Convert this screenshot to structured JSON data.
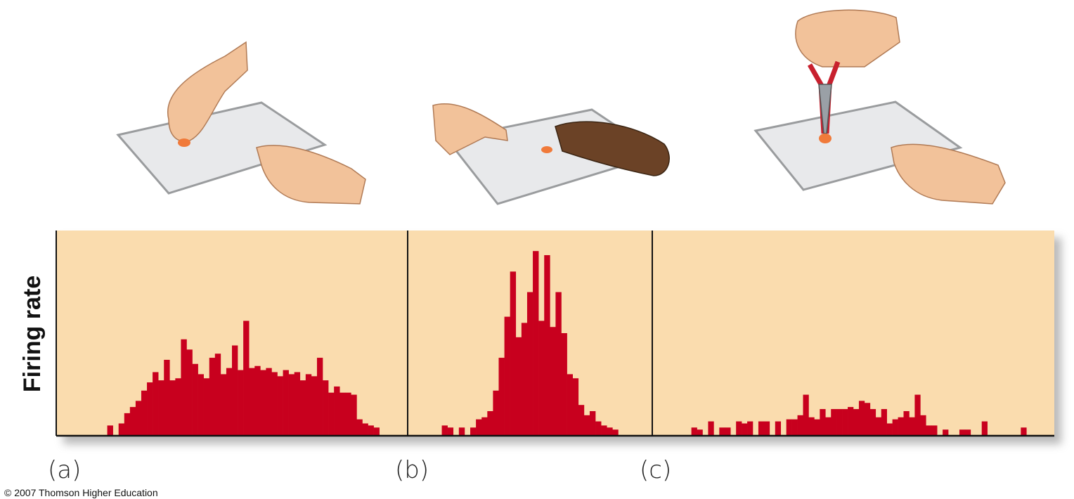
{
  "chart_data": [
    {
      "type": "bar",
      "label": "(a)",
      "y_label": "Firing rate",
      "color": "#c8001e",
      "ylim": [
        0,
        100
      ],
      "values": [
        0,
        0,
        0,
        0,
        0,
        0,
        0,
        0,
        0,
        5,
        0,
        6,
        11,
        14,
        17,
        22,
        26,
        31,
        27,
        37,
        27,
        28,
        47,
        42,
        35,
        30,
        28,
        38,
        40,
        30,
        33,
        44,
        32,
        56,
        33,
        34,
        32,
        33,
        31,
        29,
        32,
        30,
        31,
        27,
        30,
        29,
        38,
        27,
        21,
        24,
        21,
        21,
        20,
        8,
        6,
        5,
        4,
        0,
        0,
        0,
        0,
        0
      ]
    },
    {
      "type": "bar",
      "label": "(b)",
      "color": "#c8001e",
      "ylim": [
        0,
        100
      ],
      "values": [
        0,
        0,
        0,
        0,
        0,
        0,
        5,
        4,
        0,
        4,
        0,
        4,
        8,
        9,
        12,
        22,
        38,
        58,
        80,
        48,
        55,
        70,
        90,
        56,
        88,
        53,
        70,
        50,
        30,
        28,
        15,
        10,
        12,
        7,
        5,
        4,
        3,
        0,
        0,
        0,
        0,
        0,
        0
      ]
    },
    {
      "type": "bar",
      "label": "(c)",
      "color": "#c8001e",
      "ylim": [
        0,
        100
      ],
      "values": [
        0,
        0,
        0,
        0,
        0,
        0,
        0,
        4,
        3,
        0,
        7,
        0,
        4,
        4,
        0,
        7,
        6,
        7,
        0,
        7,
        7,
        0,
        7,
        0,
        8,
        8,
        10,
        20,
        9,
        8,
        13,
        9,
        13,
        13,
        13,
        14,
        13,
        17,
        16,
        13,
        9,
        13,
        6,
        8,
        9,
        12,
        9,
        20,
        10,
        5,
        5,
        0,
        3,
        0,
        0,
        3,
        3,
        0,
        0,
        7,
        0,
        0,
        0,
        0,
        0,
        0,
        4,
        0,
        0,
        0,
        0,
        0
      ]
    }
  ],
  "credit": "© 2007 Thomson Higher Education"
}
